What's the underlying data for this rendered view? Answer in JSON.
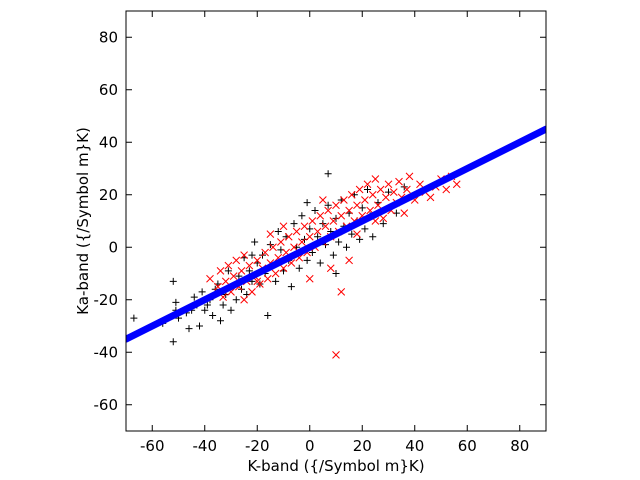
{
  "chart_data": {
    "type": "scatter",
    "title": "",
    "xlabel": "K-band ({/Symbol m}K)",
    "ylabel": "Ka-band ({/Symbol m}K)",
    "xlim": [
      -70,
      90
    ],
    "ylim": [
      -70,
      90
    ],
    "xticks": [
      -60,
      -40,
      -20,
      0,
      20,
      40,
      60,
      80
    ],
    "yticks": [
      -60,
      -40,
      -20,
      0,
      20,
      40,
      60,
      80
    ],
    "xtick_labels": [
      "-60",
      "-40",
      "-20",
      "0",
      "20",
      "40",
      "60",
      "80"
    ],
    "ytick_labels": [
      "-60",
      "-40",
      "-20",
      "0",
      "20",
      "40",
      "60",
      "80"
    ],
    "grid": false,
    "legend": "none",
    "series": [
      {
        "marker": "plus",
        "color": "#000000",
        "points": [
          [
            -67,
            -27
          ],
          [
            -56,
            -29
          ],
          [
            -52,
            -36
          ],
          [
            -52,
            -13
          ],
          [
            -51,
            -21
          ],
          [
            -51,
            -24
          ],
          [
            -50,
            -27
          ],
          [
            -47,
            -25
          ],
          [
            -46,
            -31
          ],
          [
            -45,
            -24
          ],
          [
            -44,
            -19
          ],
          [
            -43,
            -22
          ],
          [
            -42,
            -30
          ],
          [
            -41,
            -17
          ],
          [
            -40,
            -24
          ],
          [
            -39,
            -22
          ],
          [
            -38,
            -20
          ],
          [
            -37,
            -26
          ],
          [
            -36,
            -16
          ],
          [
            -35,
            -14
          ],
          [
            -34,
            -28
          ],
          [
            -33,
            -22
          ],
          [
            -32,
            -18
          ],
          [
            -31,
            -9
          ],
          [
            -30,
            -24
          ],
          [
            -29,
            -15
          ],
          [
            -28,
            -20
          ],
          [
            -27,
            -11
          ],
          [
            -26,
            -16
          ],
          [
            -25,
            -4
          ],
          [
            -24,
            -18
          ],
          [
            -23,
            -9
          ],
          [
            -22,
            -13
          ],
          [
            -21,
            2
          ],
          [
            -20,
            -6
          ],
          [
            -19,
            -14
          ],
          [
            -18,
            -3
          ],
          [
            -17,
            -10
          ],
          [
            -16,
            -26
          ],
          [
            -15,
            1
          ],
          [
            -14,
            -7
          ],
          [
            -13,
            -13
          ],
          [
            -12,
            6
          ],
          [
            -11,
            -1
          ],
          [
            -10,
            -9
          ],
          [
            -9,
            4
          ],
          [
            -8,
            -5
          ],
          [
            -7,
            -15
          ],
          [
            -6,
            9
          ],
          [
            -5,
            0
          ],
          [
            -4,
            -8
          ],
          [
            -3,
            12
          ],
          [
            -2,
            3
          ],
          [
            -1,
            -5
          ],
          [
            0,
            7
          ],
          [
            1,
            -2
          ],
          [
            2,
            14
          ],
          [
            3,
            4
          ],
          [
            4,
            -6
          ],
          [
            5,
            9
          ],
          [
            6,
            1
          ],
          [
            7,
            16
          ],
          [
            8,
            6
          ],
          [
            9,
            -3
          ],
          [
            10,
            11
          ],
          [
            11,
            2
          ],
          [
            12,
            18
          ],
          [
            13,
            8
          ],
          [
            14,
            0
          ],
          [
            15,
            13
          ],
          [
            16,
            5
          ],
          [
            17,
            20
          ],
          [
            18,
            10
          ],
          [
            19,
            3
          ],
          [
            20,
            15
          ],
          [
            21,
            7
          ],
          [
            22,
            22
          ],
          [
            23,
            12
          ],
          [
            24,
            4
          ],
          [
            26,
            17
          ],
          [
            28,
            9
          ],
          [
            30,
            21
          ],
          [
            33,
            13
          ],
          [
            36,
            23
          ],
          [
            7,
            28
          ],
          [
            -1,
            17
          ],
          [
            10,
            -10
          ],
          [
            -22,
            -3
          ]
        ]
      },
      {
        "marker": "cross",
        "color": "#ff0000",
        "points": [
          [
            -38,
            -12
          ],
          [
            -35,
            -15
          ],
          [
            -34,
            -9
          ],
          [
            -33,
            -19
          ],
          [
            -32,
            -13
          ],
          [
            -31,
            -7
          ],
          [
            -30,
            -17
          ],
          [
            -29,
            -11
          ],
          [
            -28,
            -5
          ],
          [
            -27,
            -15
          ],
          [
            -26,
            -9
          ],
          [
            -25,
            -3
          ],
          [
            -24,
            -13
          ],
          [
            -23,
            -7
          ],
          [
            -22,
            -17
          ],
          [
            -21,
            -11
          ],
          [
            -20,
            -5
          ],
          [
            -19,
            -14
          ],
          [
            -18,
            -8
          ],
          [
            -17,
            -2
          ],
          [
            -16,
            -12
          ],
          [
            -15,
            -6
          ],
          [
            -14,
            0
          ],
          [
            -13,
            -10
          ],
          [
            -12,
            -4
          ],
          [
            -11,
            2
          ],
          [
            -10,
            -8
          ],
          [
            -9,
            -2
          ],
          [
            -8,
            4
          ],
          [
            -7,
            -6
          ],
          [
            -6,
            0
          ],
          [
            -5,
            6
          ],
          [
            -4,
            -4
          ],
          [
            -3,
            2
          ],
          [
            -2,
            8
          ],
          [
            -1,
            -2
          ],
          [
            0,
            4
          ],
          [
            1,
            10
          ],
          [
            2,
            0
          ],
          [
            3,
            6
          ],
          [
            4,
            12
          ],
          [
            5,
            2
          ],
          [
            6,
            8
          ],
          [
            7,
            14
          ],
          [
            8,
            4
          ],
          [
            9,
            10
          ],
          [
            10,
            16
          ],
          [
            11,
            6
          ],
          [
            12,
            12
          ],
          [
            13,
            18
          ],
          [
            14,
            8
          ],
          [
            15,
            14
          ],
          [
            16,
            20
          ],
          [
            17,
            10
          ],
          [
            18,
            16
          ],
          [
            19,
            22
          ],
          [
            20,
            12
          ],
          [
            21,
            18
          ],
          [
            22,
            24
          ],
          [
            23,
            14
          ],
          [
            24,
            20
          ],
          [
            25,
            26
          ],
          [
            26,
            16
          ],
          [
            27,
            22
          ],
          [
            28,
            11
          ],
          [
            29,
            19
          ],
          [
            30,
            24
          ],
          [
            31,
            14
          ],
          [
            32,
            21
          ],
          [
            33,
            17
          ],
          [
            34,
            25
          ],
          [
            35,
            19
          ],
          [
            36,
            13
          ],
          [
            37,
            22
          ],
          [
            38,
            27
          ],
          [
            40,
            18
          ],
          [
            42,
            24
          ],
          [
            44,
            21
          ],
          [
            46,
            19
          ],
          [
            48,
            23
          ],
          [
            50,
            26
          ],
          [
            52,
            22
          ],
          [
            54,
            27
          ],
          [
            56,
            24
          ],
          [
            10,
            -41
          ],
          [
            12,
            -17
          ],
          [
            -20,
            -13
          ],
          [
            -10,
            8
          ],
          [
            0,
            -12
          ],
          [
            5,
            18
          ],
          [
            15,
            -5
          ],
          [
            -25,
            -20
          ],
          [
            -15,
            5
          ],
          [
            8,
            -8
          ],
          [
            18,
            5
          ],
          [
            25,
            10
          ]
        ]
      },
      {
        "marker": "line",
        "color": "#0000ff",
        "points": [
          [
            -70,
            -35
          ],
          [
            90,
            45
          ]
        ]
      }
    ]
  }
}
